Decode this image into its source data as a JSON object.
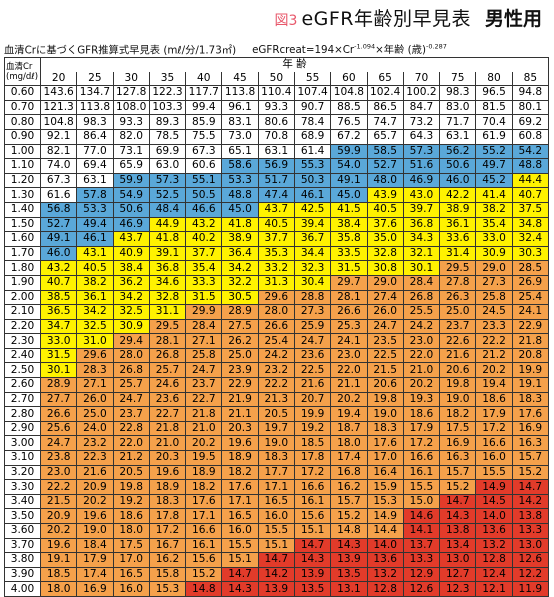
{
  "title": {
    "fig": "図3",
    "main": "eGFR年齢別早見表",
    "sex": "男性用"
  },
  "subtitle": {
    "left": "血清Crに基づくGFR推算式早見表 (mℓ/分/1.73㎡)",
    "formula_prefix": "eGFRcreat=194×Cr",
    "formula_exp1": "-1.094",
    "formula_mid": "×年齢 (歳)",
    "formula_exp2": "-0.287"
  },
  "table": {
    "corner": "血清Cr\n(mg/dℓ)",
    "age_label": "年 齢",
    "ages": [
      "20",
      "25",
      "30",
      "35",
      "40",
      "45",
      "50",
      "55",
      "60",
      "65",
      "70",
      "75",
      "80",
      "85"
    ],
    "colors": {
      "w": "#ffffff",
      "b": "#5aa8d9",
      "y": "#fff200",
      "o": "#f5a14b",
      "r": "#e23b2a"
    },
    "rows": [
      {
        "cr": "0.60",
        "values": [
          "143.6",
          "134.7",
          "127.8",
          "122.3",
          "117.7",
          "113.8",
          "110.4",
          "107.4",
          "104.8",
          "102.4",
          "100.2",
          "98.3",
          "96.5",
          "94.8"
        ],
        "colors": "wwwwwwwwwwwwww"
      },
      {
        "cr": "0.70",
        "values": [
          "121.3",
          "113.8",
          "108.0",
          "103.3",
          "99.4",
          "96.1",
          "93.3",
          "90.7",
          "88.5",
          "86.5",
          "84.7",
          "83.0",
          "81.5",
          "80.1"
        ],
        "colors": "wwwwwwwwwwwwww"
      },
      {
        "cr": "0.80",
        "values": [
          "104.8",
          "98.3",
          "93.3",
          "89.3",
          "85.9",
          "83.1",
          "80.6",
          "78.4",
          "76.5",
          "74.7",
          "73.2",
          "71.7",
          "70.4",
          "69.2"
        ],
        "colors": "wwwwwwwwwwwwww"
      },
      {
        "cr": "0.90",
        "values": [
          "92.1",
          "86.4",
          "82.0",
          "78.5",
          "75.5",
          "73.0",
          "70.8",
          "68.9",
          "67.2",
          "65.7",
          "64.3",
          "63.1",
          "61.9",
          "60.8"
        ],
        "colors": "wwwwwwwwwwwwww"
      },
      {
        "cr": "1.00",
        "values": [
          "82.1",
          "77.0",
          "73.1",
          "69.9",
          "67.3",
          "65.1",
          "63.1",
          "61.4",
          "59.9",
          "58.5",
          "57.3",
          "56.2",
          "55.2",
          "54.2"
        ],
        "colors": "wwwwwwwwbbbbbb"
      },
      {
        "cr": "1.10",
        "values": [
          "74.0",
          "69.4",
          "65.9",
          "63.0",
          "60.6",
          "58.6",
          "56.9",
          "55.3",
          "54.0",
          "52.7",
          "51.6",
          "50.6",
          "49.7",
          "48.8"
        ],
        "colors": "wwwwwbbbbbbbbb"
      },
      {
        "cr": "1.20",
        "values": [
          "67.3",
          "63.1",
          "59.9",
          "57.3",
          "55.1",
          "53.3",
          "51.7",
          "50.3",
          "49.1",
          "48.0",
          "46.9",
          "46.0",
          "45.2",
          "44.4"
        ],
        "colors": "wwbbbbbbbbbbby"
      },
      {
        "cr": "1.30",
        "values": [
          "61.6",
          "57.8",
          "54.9",
          "52.5",
          "50.5",
          "48.8",
          "47.4",
          "46.1",
          "45.0",
          "43.9",
          "43.0",
          "42.2",
          "41.4",
          "40.7"
        ],
        "colors": "wbbbbbbbbyyyyy"
      },
      {
        "cr": "1.40",
        "values": [
          "56.8",
          "53.3",
          "50.6",
          "48.4",
          "46.6",
          "45.0",
          "43.7",
          "42.5",
          "41.5",
          "40.5",
          "39.7",
          "38.9",
          "38.2",
          "37.5"
        ],
        "colors": "bbbbbbyyyyyyyy"
      },
      {
        "cr": "1.50",
        "values": [
          "52.7",
          "49.4",
          "46.9",
          "44.9",
          "43.2",
          "41.8",
          "40.5",
          "39.4",
          "38.4",
          "37.6",
          "36.8",
          "36.1",
          "35.4",
          "34.8"
        ],
        "colors": "bbbyyyyyyyyyyy"
      },
      {
        "cr": "1.60",
        "values": [
          "49.1",
          "46.1",
          "43.7",
          "41.8",
          "40.2",
          "38.9",
          "37.7",
          "36.7",
          "35.8",
          "35.0",
          "34.3",
          "33.6",
          "33.0",
          "32.4"
        ],
        "colors": "bbyyyyyyyyyyyy"
      },
      {
        "cr": "1.70",
        "values": [
          "46.0",
          "43.1",
          "40.9",
          "39.1",
          "37.7",
          "36.4",
          "35.3",
          "34.4",
          "33.5",
          "32.8",
          "32.1",
          "31.4",
          "30.9",
          "30.3"
        ],
        "colors": "byyyyyyyyyyyyy"
      },
      {
        "cr": "1.80",
        "values": [
          "43.2",
          "40.5",
          "38.4",
          "36.8",
          "35.4",
          "34.2",
          "33.2",
          "32.3",
          "31.5",
          "30.8",
          "30.1",
          "29.5",
          "29.0",
          "28.5"
        ],
        "colors": "yyyyyyyyyyyooo"
      },
      {
        "cr": "1.90",
        "values": [
          "40.7",
          "38.2",
          "36.2",
          "34.6",
          "33.3",
          "32.2",
          "31.3",
          "30.4",
          "29.7",
          "29.0",
          "28.4",
          "27.8",
          "27.3",
          "26.9"
        ],
        "colors": "yyyyyyyyoooooo"
      },
      {
        "cr": "2.00",
        "values": [
          "38.5",
          "36.1",
          "34.2",
          "32.8",
          "31.5",
          "30.5",
          "29.6",
          "28.8",
          "28.1",
          "27.4",
          "26.8",
          "26.3",
          "25.8",
          "25.4"
        ],
        "colors": "yyyyyyoooooooo"
      },
      {
        "cr": "2.10",
        "values": [
          "36.5",
          "34.2",
          "32.5",
          "31.1",
          "29.9",
          "28.9",
          "28.0",
          "27.3",
          "26.6",
          "26.0",
          "25.5",
          "25.0",
          "24.5",
          "24.1"
        ],
        "colors": "yyyyoooooooooo"
      },
      {
        "cr": "2.20",
        "values": [
          "34.7",
          "32.5",
          "30.9",
          "29.5",
          "28.4",
          "27.5",
          "26.6",
          "25.9",
          "25.3",
          "24.7",
          "24.2",
          "23.7",
          "23.3",
          "22.9"
        ],
        "colors": "yyyooooooooooo"
      },
      {
        "cr": "2.30",
        "values": [
          "33.0",
          "31.0",
          "29.4",
          "28.1",
          "27.1",
          "26.2",
          "25.4",
          "24.7",
          "24.1",
          "23.5",
          "23.0",
          "22.6",
          "22.2",
          "21.8"
        ],
        "colors": "yyoooooooooooo"
      },
      {
        "cr": "2.40",
        "values": [
          "31.5",
          "29.6",
          "28.0",
          "26.8",
          "25.8",
          "25.0",
          "24.2",
          "23.6",
          "23.0",
          "22.5",
          "22.0",
          "21.6",
          "21.2",
          "20.8"
        ],
        "colors": "yooooooooooooo"
      },
      {
        "cr": "2.50",
        "values": [
          "30.1",
          "28.3",
          "26.8",
          "25.7",
          "24.7",
          "23.9",
          "23.2",
          "22.5",
          "22.0",
          "21.5",
          "21.0",
          "20.6",
          "20.2",
          "19.9"
        ],
        "colors": "yooooooooooooo"
      },
      {
        "cr": "2.60",
        "values": [
          "28.9",
          "27.1",
          "25.7",
          "24.6",
          "23.7",
          "22.9",
          "22.2",
          "21.6",
          "21.1",
          "20.6",
          "20.2",
          "19.8",
          "19.4",
          "19.1"
        ],
        "colors": "oooooooooooooo"
      },
      {
        "cr": "2.70",
        "values": [
          "27.7",
          "26.0",
          "24.7",
          "23.6",
          "22.7",
          "21.9",
          "21.3",
          "20.7",
          "20.2",
          "19.8",
          "19.3",
          "19.0",
          "18.6",
          "18.3"
        ],
        "colors": "oooooooooooooo"
      },
      {
        "cr": "2.80",
        "values": [
          "26.6",
          "25.0",
          "23.7",
          "22.7",
          "21.8",
          "21.1",
          "20.5",
          "19.9",
          "19.4",
          "19.0",
          "18.6",
          "18.2",
          "17.9",
          "17.6"
        ],
        "colors": "oooooooooooooo"
      },
      {
        "cr": "2.90",
        "values": [
          "25.6",
          "24.0",
          "22.8",
          "21.8",
          "21.0",
          "20.3",
          "19.7",
          "19.2",
          "18.7",
          "18.3",
          "17.9",
          "17.5",
          "17.2",
          "16.9"
        ],
        "colors": "oooooooooooooo"
      },
      {
        "cr": "3.00",
        "values": [
          "24.7",
          "23.2",
          "22.0",
          "21.0",
          "20.2",
          "19.6",
          "19.0",
          "18.5",
          "18.0",
          "17.6",
          "17.2",
          "16.9",
          "16.6",
          "16.3"
        ],
        "colors": "oooooooooooooo"
      },
      {
        "cr": "3.10",
        "values": [
          "23.8",
          "22.3",
          "21.2",
          "20.3",
          "19.5",
          "18.9",
          "18.3",
          "17.8",
          "17.4",
          "17.0",
          "16.6",
          "16.3",
          "16.0",
          "15.7"
        ],
        "colors": "oooooooooooooo"
      },
      {
        "cr": "3.20",
        "values": [
          "23.0",
          "21.6",
          "20.5",
          "19.6",
          "18.9",
          "18.2",
          "17.7",
          "17.2",
          "16.8",
          "16.4",
          "16.1",
          "15.7",
          "15.5",
          "15.2"
        ],
        "colors": "oooooooooooooo"
      },
      {
        "cr": "3.30",
        "values": [
          "22.2",
          "20.9",
          "19.8",
          "18.9",
          "18.2",
          "17.6",
          "17.1",
          "16.6",
          "16.2",
          "15.9",
          "15.5",
          "15.2",
          "14.9",
          "14.7"
        ],
        "colors": "oooooooooooorr"
      },
      {
        "cr": "3.40",
        "values": [
          "21.5",
          "20.2",
          "19.2",
          "18.3",
          "17.6",
          "17.1",
          "16.5",
          "16.1",
          "15.7",
          "15.3",
          "15.0",
          "14.7",
          "14.5",
          "14.2"
        ],
        "colors": "ooooooooooorrr"
      },
      {
        "cr": "3.50",
        "values": [
          "20.9",
          "19.6",
          "18.6",
          "17.8",
          "17.1",
          "16.5",
          "16.0",
          "15.6",
          "15.2",
          "14.9",
          "14.6",
          "14.3",
          "14.0",
          "13.8"
        ],
        "colors": "oooooooooorrrr"
      },
      {
        "cr": "3.60",
        "values": [
          "20.2",
          "19.0",
          "18.0",
          "17.2",
          "16.6",
          "16.0",
          "15.5",
          "15.1",
          "14.8",
          "14.4",
          "14.1",
          "13.8",
          "13.6",
          "13.3"
        ],
        "colors": "oooooooooorrrr"
      },
      {
        "cr": "3.70",
        "values": [
          "19.6",
          "18.4",
          "17.5",
          "16.7",
          "16.1",
          "15.5",
          "15.1",
          "14.7",
          "14.3",
          "14.0",
          "13.7",
          "13.4",
          "13.2",
          "13.0"
        ],
        "colors": "ooooooorrrrrrr"
      },
      {
        "cr": "3.80",
        "values": [
          "19.1",
          "17.9",
          "17.0",
          "16.2",
          "15.6",
          "15.1",
          "14.7",
          "14.3",
          "13.9",
          "13.6",
          "13.3",
          "13.0",
          "12.8",
          "12.6"
        ],
        "colors": "oooooorrrrrrrr"
      },
      {
        "cr": "3.90",
        "values": [
          "18.5",
          "17.4",
          "16.5",
          "15.8",
          "15.2",
          "14.7",
          "14.2",
          "13.9",
          "13.5",
          "13.2",
          "12.9",
          "12.7",
          "12.4",
          "12.2"
        ],
        "colors": "ooooorrrrrrrrr"
      },
      {
        "cr": "4.00",
        "values": [
          "18.0",
          "16.9",
          "16.0",
          "15.3",
          "14.8",
          "14.3",
          "13.9",
          "13.5",
          "13.1",
          "12.8",
          "12.6",
          "12.3",
          "12.1",
          "11.9"
        ],
        "colors": "oooorrrrrrrrrr"
      }
    ]
  }
}
